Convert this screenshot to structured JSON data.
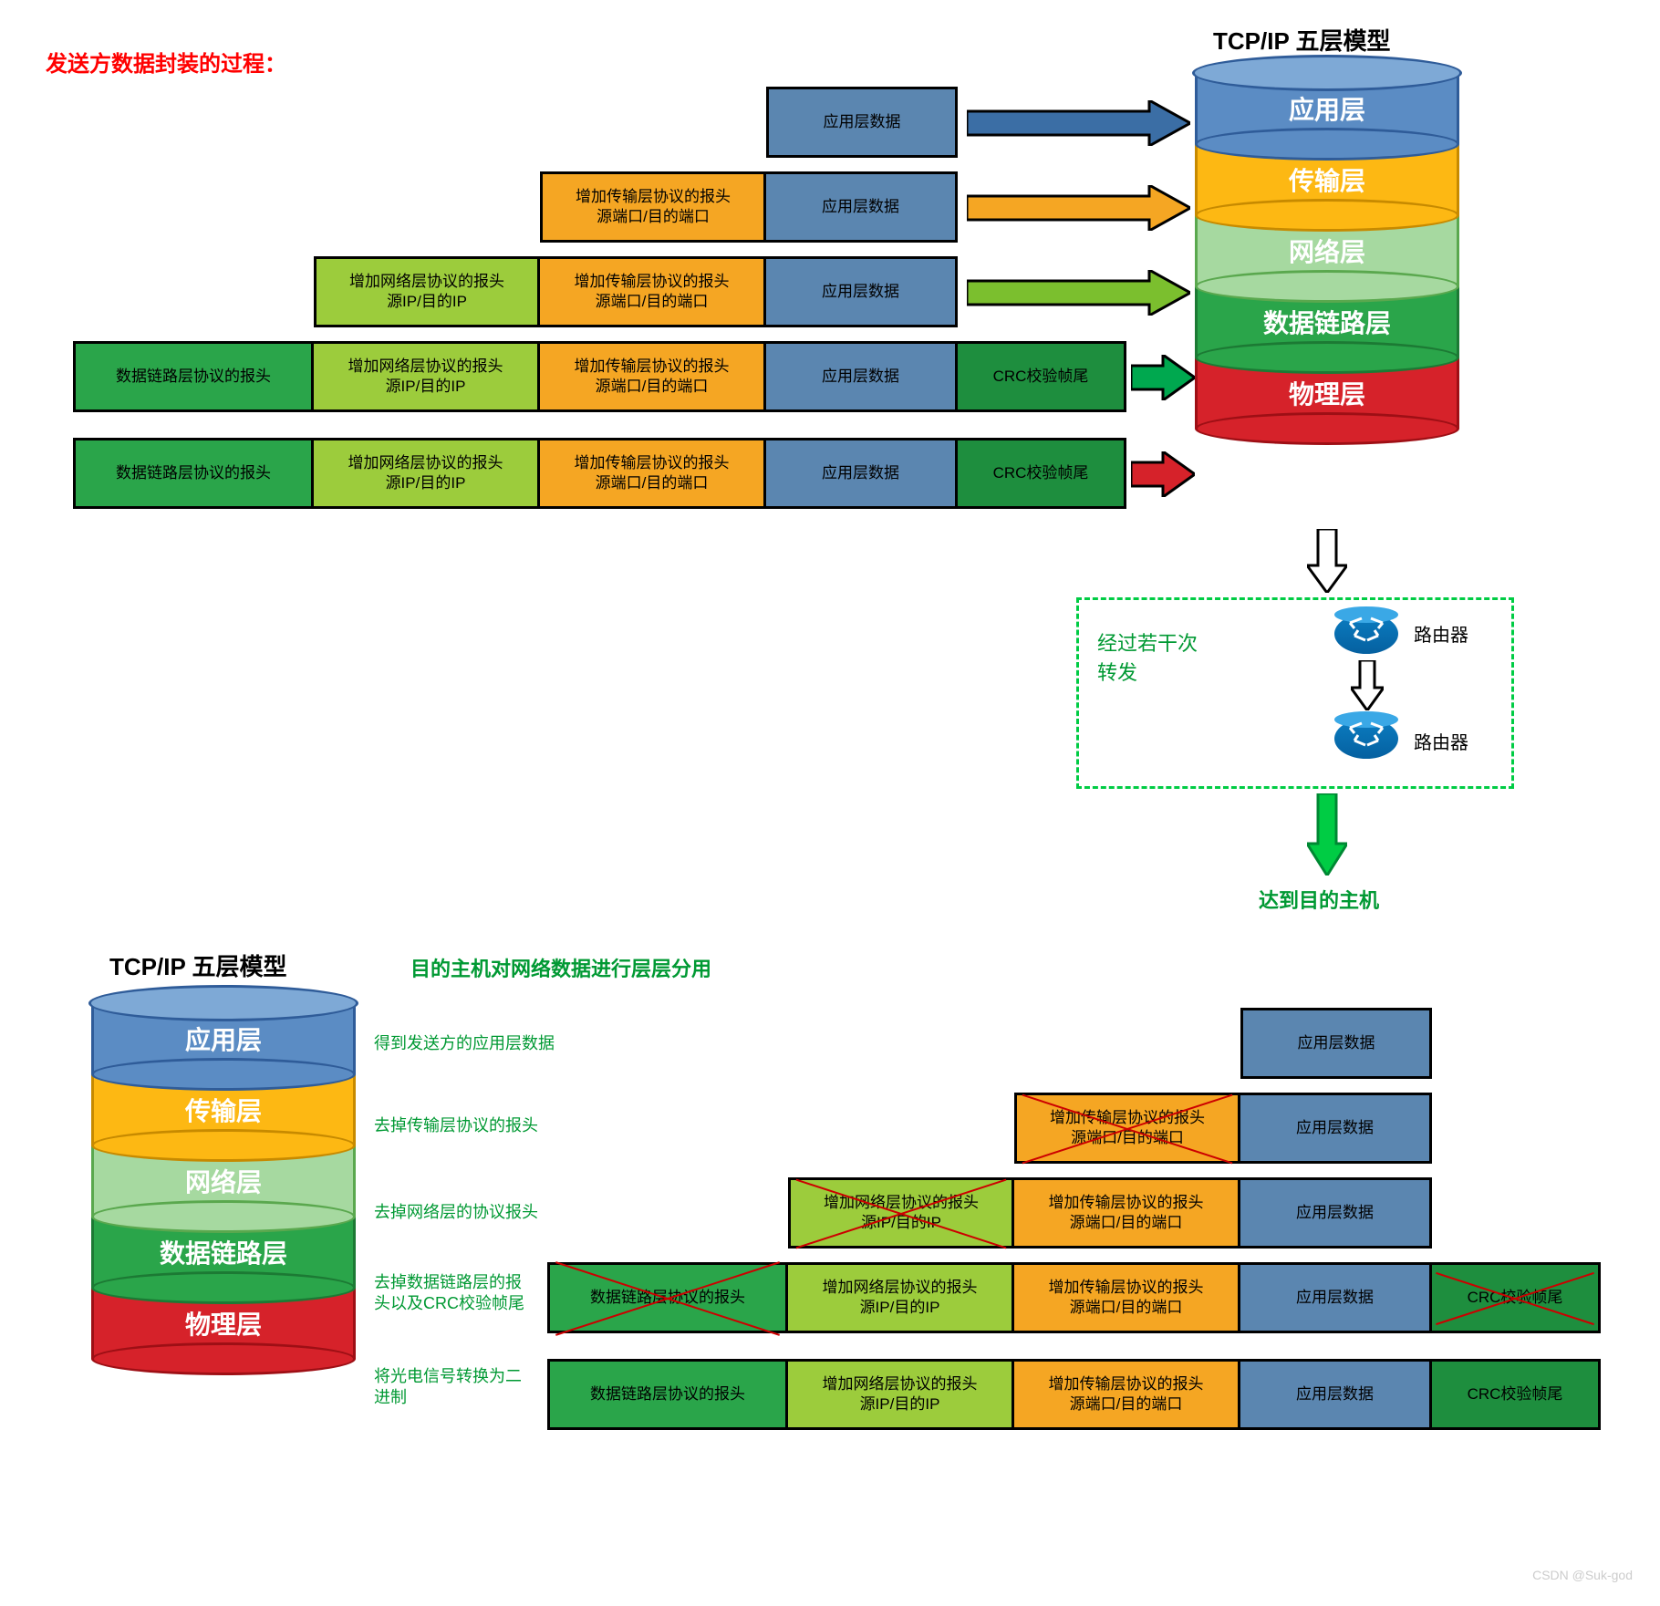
{
  "titles": {
    "send_process": "发送方数据封装的过程：",
    "model_title": "TCP/IP 五层模型",
    "recv_process": "目的主机对网络数据进行层层分用",
    "arrive_host": "达到目的主机"
  },
  "router_section": {
    "text": "经过若干次\n转发",
    "router_label": "路由器"
  },
  "model_layers": [
    {
      "name": "应用层",
      "bg": "#5b8cc4",
      "border": "#2f5c99",
      "top": "#7ea9d6"
    },
    {
      "name": "传输层",
      "bg": "#fdb813",
      "border": "#c78a00",
      "top": "#ffd05a"
    },
    {
      "name": "网络层",
      "bg": "#a6d9a0",
      "border": "#5aa84e",
      "top": "#c7e9c2"
    },
    {
      "name": "数据链路层",
      "bg": "#2aa54a",
      "border": "#1c7a34",
      "top": "#4cc06a"
    },
    {
      "name": "物理层",
      "bg": "#d6222a",
      "border": "#9e0f15",
      "top": "#e85056"
    }
  ],
  "cells": {
    "app_data": "应用层数据",
    "transport_header": "增加传输层协议的报头\n源端口/目的端口",
    "network_header": "增加网络层协议的报头\n源IP/目的IP",
    "datalink_header": "数据链路层协议的报头",
    "crc_trailer": "CRC校验帧尾"
  },
  "colors": {
    "blue_box": "#5b86b0",
    "orange_box": "#f5a623",
    "lime_box": "#9ccc3c",
    "green_box": "#2aa54a",
    "dark_green_box": "#1e8e3e",
    "border": "#000000",
    "arrow_blue": "#3b6ea5",
    "arrow_orange": "#f5a623",
    "arrow_lime": "#7bbf2e",
    "arrow_green": "#00a84f",
    "arrow_red": "#d6222a"
  },
  "annotations": {
    "got_app_data": "得到发送方的应用层数据",
    "strip_transport": "去掉传输层协议的报头",
    "strip_network": "去掉网络层的协议报头",
    "strip_datalink": "去掉数据链路层的报头以及CRC校验帧尾",
    "convert_signal": "将光电信号转换为二进制"
  },
  "arrow_sizes": {
    "big_w": 130,
    "big_h": 50,
    "stroke": 3
  },
  "watermark": "CSDN @Suk-god"
}
